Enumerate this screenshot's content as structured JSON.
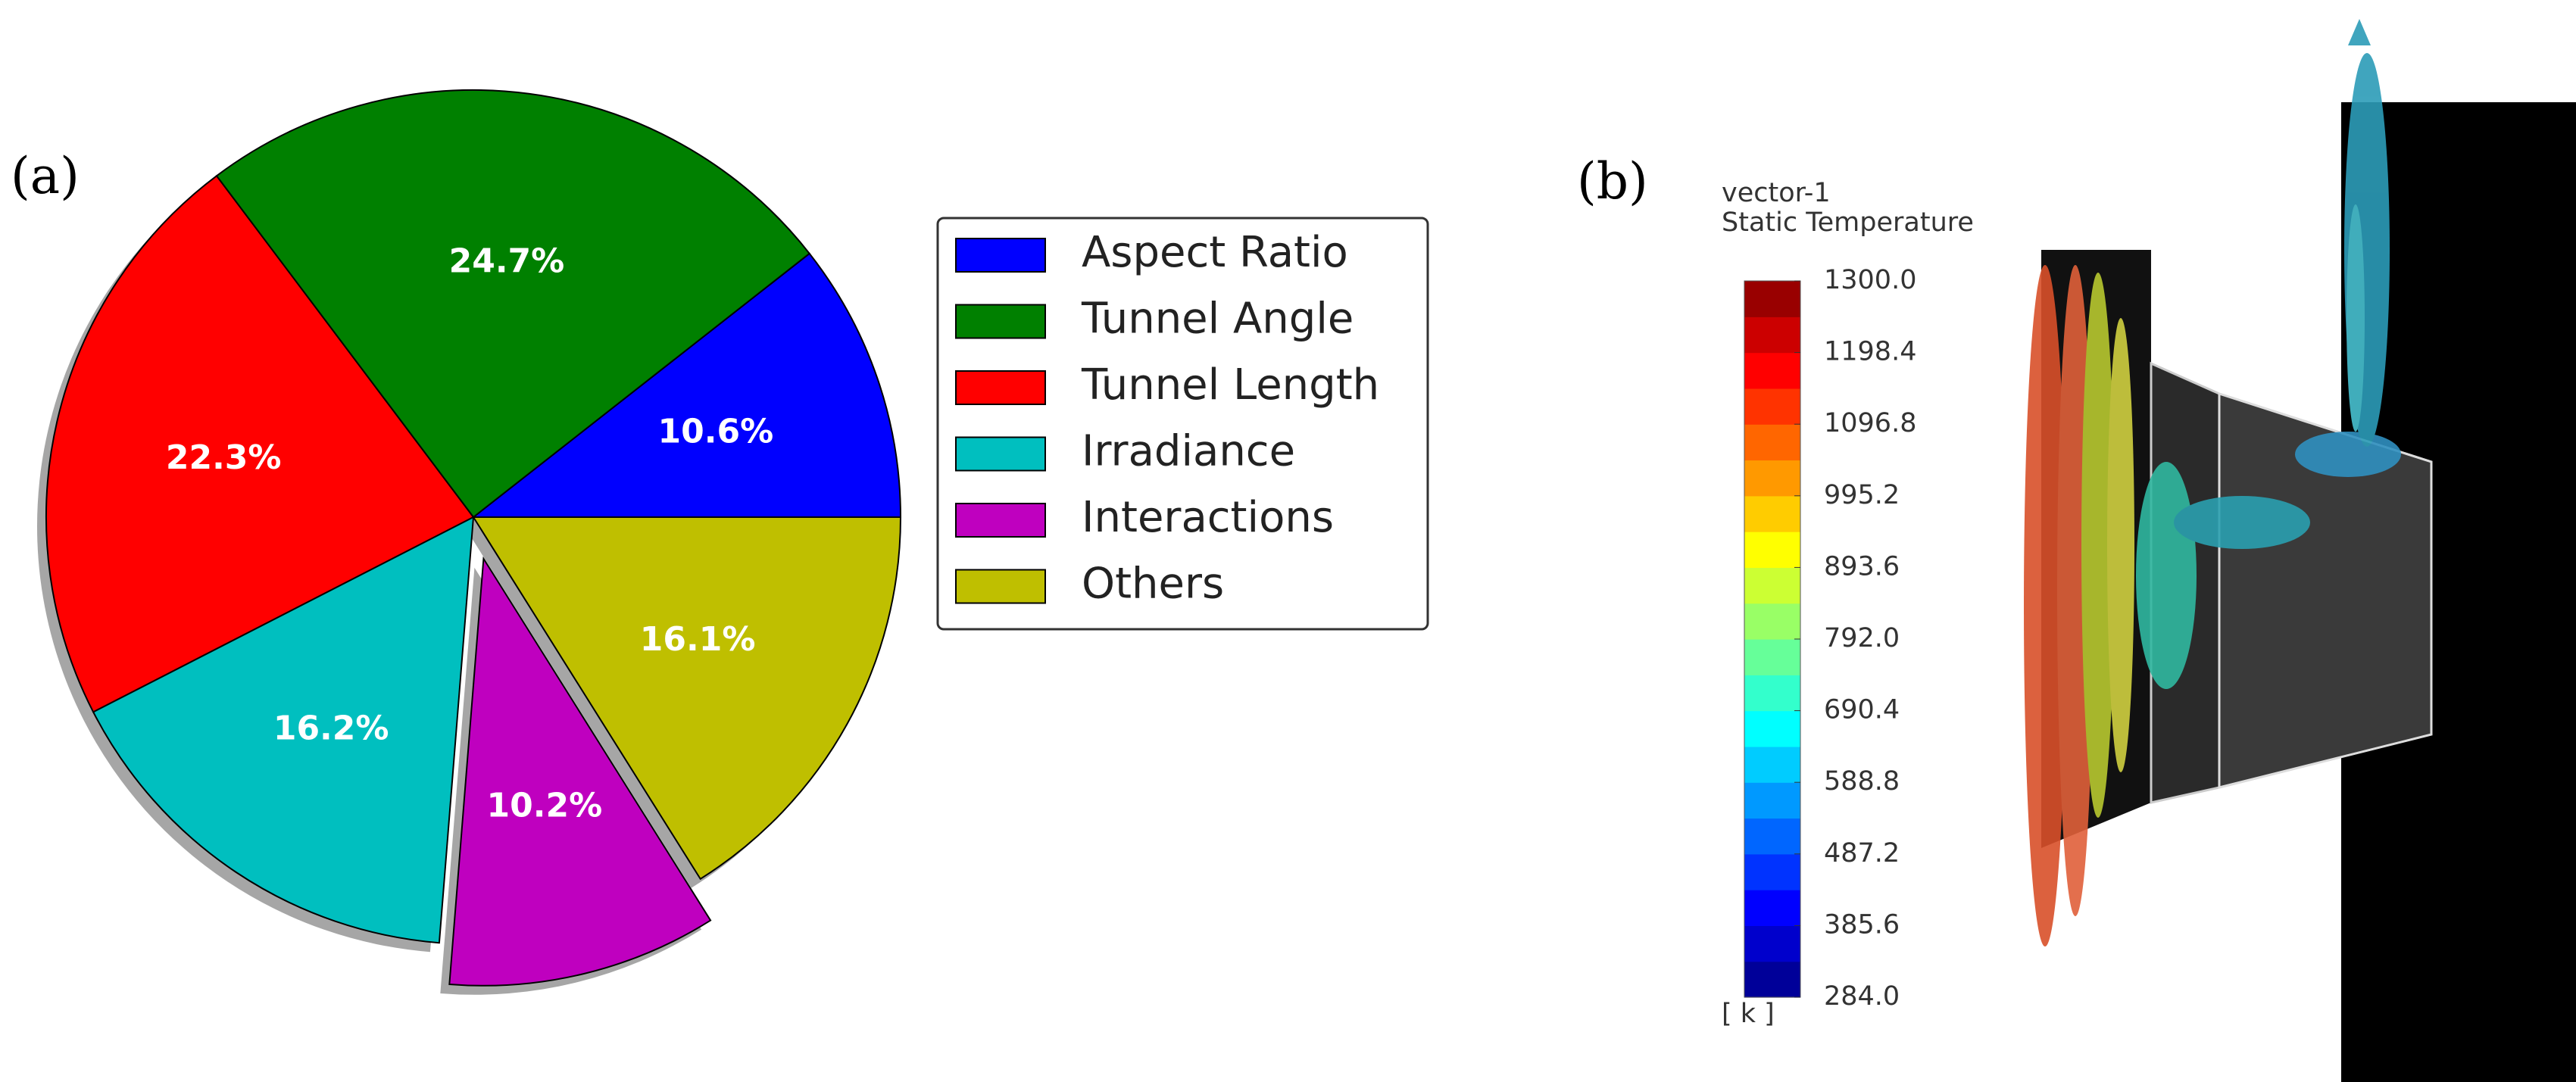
{
  "chart_data": [
    {
      "type": "pie",
      "panel_label": "(a)",
      "categories": [
        "Aspect Ratio",
        "Tunnel Angle",
        "Tunnel Length",
        "Irradiance",
        "Interactions",
        "Others"
      ],
      "values": [
        10.6,
        24.7,
        22.3,
        16.2,
        10.2,
        16.1
      ],
      "value_labels": [
        "10.6%",
        "24.7%",
        "22.3%",
        "16.2%",
        "10.2%",
        "16.1%"
      ],
      "colors": [
        "#0000ff",
        "#008000",
        "#ff0000",
        "#00bfbf",
        "#bf00bf",
        "#bfbf00"
      ],
      "explode": [
        0,
        0,
        0,
        0,
        0.1,
        0
      ],
      "shadow": true,
      "legend": "right"
    },
    {
      "type": "colorbar",
      "panel_label": "(b)",
      "title": "vector-1",
      "subtitle": "Static Temperature",
      "unit": "[ k ]",
      "ylim": [
        284,
        1300
      ],
      "yticks": [
        {
          "value": 1300,
          "label": "1300.0"
        },
        1198.4,
        1096.8,
        995.2,
        893.6,
        {
          "value": 792,
          "label": "792.0"
        },
        690.4,
        588.8,
        487.2,
        385.6,
        {
          "value": 284,
          "label": "284.0"
        }
      ]
    }
  ]
}
